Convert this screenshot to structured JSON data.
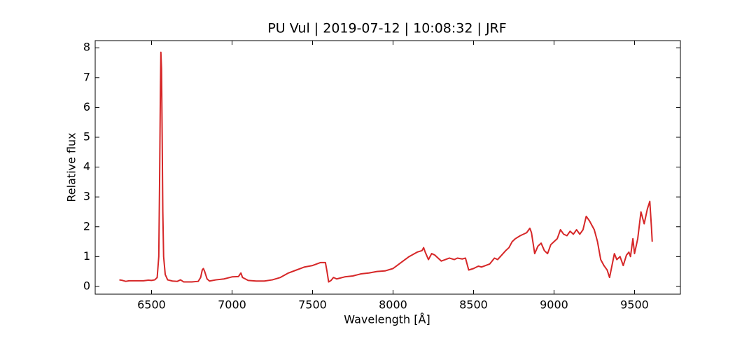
{
  "chart_data": {
    "type": "line",
    "title": "PU Vul | 2019-07-12 | 10:08:32 | JRF",
    "xlabel": "Wavelength [Å]",
    "ylabel": "Relative flux",
    "xlim": [
      6150,
      9785
    ],
    "ylim": [
      -0.26,
      8.24
    ],
    "xticks": [
      6500,
      7000,
      7500,
      8000,
      8500,
      9000,
      9500
    ],
    "yticks": [
      0,
      1,
      2,
      3,
      4,
      5,
      6,
      7,
      8
    ],
    "series": [
      {
        "color": "#d62728",
        "x": [
          6300,
          6320,
          6340,
          6360,
          6400,
          6450,
          6480,
          6500,
          6520,
          6535,
          6545,
          6550,
          6555,
          6558,
          6562,
          6566,
          6570,
          6575,
          6585,
          6600,
          6630,
          6660,
          6680,
          6700,
          6750,
          6790,
          6805,
          6815,
          6822,
          6830,
          6845,
          6860,
          6900,
          6950,
          7000,
          7040,
          7055,
          7065,
          7100,
          7150,
          7200,
          7250,
          7300,
          7350,
          7400,
          7450,
          7500,
          7550,
          7580,
          7590,
          7600,
          7615,
          7630,
          7650,
          7700,
          7750,
          7800,
          7850,
          7900,
          7950,
          8000,
          8050,
          8100,
          8150,
          8180,
          8190,
          8200,
          8220,
          8240,
          8260,
          8280,
          8300,
          8350,
          8380,
          8400,
          8430,
          8450,
          8470,
          8500,
          8530,
          8550,
          8600,
          8630,
          8650,
          8700,
          8720,
          8740,
          8760,
          8790,
          8810,
          8830,
          8850,
          8860,
          8880,
          8900,
          8920,
          8940,
          8960,
          8980,
          9000,
          9020,
          9040,
          9060,
          9080,
          9100,
          9120,
          9140,
          9160,
          9180,
          9200,
          9220,
          9240,
          9250,
          9270,
          9290,
          9310,
          9330,
          9345,
          9360,
          9375,
          9390,
          9410,
          9430,
          9450,
          9465,
          9475,
          9490,
          9500,
          9520,
          9540,
          9560,
          9580,
          9595,
          9605,
          9610
        ],
        "values": [
          0.22,
          0.2,
          0.17,
          0.19,
          0.19,
          0.19,
          0.21,
          0.2,
          0.22,
          0.3,
          1.0,
          3.5,
          6.5,
          7.85,
          7.3,
          5.0,
          2.5,
          1.0,
          0.4,
          0.22,
          0.18,
          0.17,
          0.22,
          0.15,
          0.15,
          0.17,
          0.3,
          0.55,
          0.6,
          0.5,
          0.25,
          0.18,
          0.22,
          0.25,
          0.32,
          0.33,
          0.45,
          0.3,
          0.2,
          0.18,
          0.18,
          0.22,
          0.3,
          0.45,
          0.55,
          0.65,
          0.7,
          0.8,
          0.8,
          0.5,
          0.15,
          0.2,
          0.3,
          0.25,
          0.32,
          0.35,
          0.42,
          0.45,
          0.5,
          0.52,
          0.6,
          0.8,
          1.0,
          1.15,
          1.2,
          1.3,
          1.15,
          0.9,
          1.1,
          1.05,
          0.95,
          0.85,
          0.95,
          0.9,
          0.95,
          0.92,
          0.95,
          0.55,
          0.6,
          0.68,
          0.65,
          0.75,
          0.95,
          0.9,
          1.2,
          1.3,
          1.5,
          1.6,
          1.7,
          1.75,
          1.8,
          1.95,
          1.8,
          1.1,
          1.35,
          1.45,
          1.2,
          1.1,
          1.4,
          1.5,
          1.6,
          1.9,
          1.75,
          1.7,
          1.85,
          1.75,
          1.9,
          1.75,
          1.9,
          2.35,
          2.2,
          2.0,
          1.9,
          1.5,
          0.9,
          0.7,
          0.55,
          0.3,
          0.7,
          1.1,
          0.9,
          1.0,
          0.7,
          1.05,
          1.15,
          1.0,
          1.6,
          1.1,
          1.6,
          2.5,
          2.1,
          2.6,
          2.85,
          2.0,
          1.5
        ]
      }
    ]
  }
}
